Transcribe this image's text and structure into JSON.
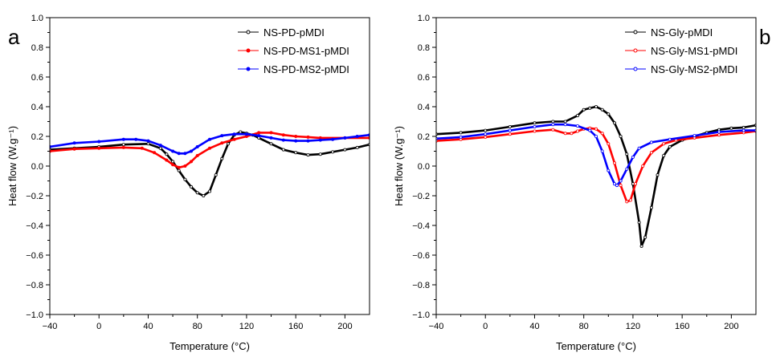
{
  "chart_data": [
    {
      "type": "line",
      "panel_label": "a",
      "title": "",
      "xlabel": "Temperature (°C)",
      "ylabel": "Heat flow (W.g⁻¹)",
      "xlim": [
        -40,
        220
      ],
      "ylim": [
        -1.0,
        1.0
      ],
      "xticks": [
        -40,
        0,
        40,
        80,
        120,
        160,
        200
      ],
      "yticks": [
        -1.0,
        -0.8,
        -0.6,
        -0.4,
        -0.2,
        0.0,
        0.2,
        0.4,
        0.6,
        0.8,
        1.0
      ],
      "ytick_labels": [
        "−1.0",
        "−0.8",
        "−0.6",
        "−0.4",
        "−0.2",
        "0.0",
        "0.2",
        "0.4",
        "0.6",
        "0.8",
        "1.0"
      ],
      "xtick_labels": [
        "−40",
        "0",
        "40",
        "80",
        "120",
        "160",
        "200"
      ],
      "grid": false,
      "legend_position": "top-right",
      "series": [
        {
          "name": "NS-PD-pMDI",
          "color": "#000000",
          "marker": "open-circle",
          "points": [
            [
              -40,
              0.11
            ],
            [
              -20,
              0.12
            ],
            [
              0,
              0.13
            ],
            [
              20,
              0.145
            ],
            [
              40,
              0.15
            ],
            [
              50,
              0.12
            ],
            [
              55,
              0.08
            ],
            [
              60,
              0.03
            ],
            [
              65,
              -0.03
            ],
            [
              70,
              -0.09
            ],
            [
              75,
              -0.14
            ],
            [
              80,
              -0.18
            ],
            [
              85,
              -0.2
            ],
            [
              90,
              -0.17
            ],
            [
              95,
              -0.06
            ],
            [
              100,
              0.05
            ],
            [
              105,
              0.15
            ],
            [
              110,
              0.21
            ],
            [
              115,
              0.23
            ],
            [
              120,
              0.22
            ],
            [
              125,
              0.21
            ],
            [
              130,
              0.19
            ],
            [
              140,
              0.15
            ],
            [
              150,
              0.11
            ],
            [
              160,
              0.09
            ],
            [
              170,
              0.075
            ],
            [
              180,
              0.08
            ],
            [
              190,
              0.095
            ],
            [
              200,
              0.11
            ],
            [
              210,
              0.125
            ],
            [
              220,
              0.145
            ]
          ]
        },
        {
          "name": "NS-PD-MS1-pMDI",
          "color": "#ff0000",
          "marker": "filled-circle",
          "points": [
            [
              -40,
              0.1
            ],
            [
              -20,
              0.115
            ],
            [
              0,
              0.12
            ],
            [
              20,
              0.125
            ],
            [
              35,
              0.12
            ],
            [
              45,
              0.09
            ],
            [
              55,
              0.04
            ],
            [
              60,
              0.01
            ],
            [
              65,
              -0.01
            ],
            [
              70,
              0.0
            ],
            [
              75,
              0.03
            ],
            [
              80,
              0.07
            ],
            [
              90,
              0.12
            ],
            [
              100,
              0.155
            ],
            [
              110,
              0.18
            ],
            [
              120,
              0.2
            ],
            [
              130,
              0.225
            ],
            [
              140,
              0.225
            ],
            [
              150,
              0.21
            ],
            [
              160,
              0.2
            ],
            [
              170,
              0.195
            ],
            [
              180,
              0.19
            ],
            [
              200,
              0.19
            ],
            [
              220,
              0.19
            ]
          ]
        },
        {
          "name": "NS-PD-MS2-pMDI",
          "color": "#0000ff",
          "marker": "filled-circle",
          "points": [
            [
              -40,
              0.13
            ],
            [
              -20,
              0.155
            ],
            [
              0,
              0.165
            ],
            [
              20,
              0.18
            ],
            [
              30,
              0.18
            ],
            [
              40,
              0.17
            ],
            [
              50,
              0.14
            ],
            [
              60,
              0.1
            ],
            [
              65,
              0.085
            ],
            [
              70,
              0.085
            ],
            [
              75,
              0.1
            ],
            [
              80,
              0.13
            ],
            [
              90,
              0.18
            ],
            [
              100,
              0.205
            ],
            [
              110,
              0.215
            ],
            [
              120,
              0.215
            ],
            [
              130,
              0.205
            ],
            [
              140,
              0.19
            ],
            [
              150,
              0.175
            ],
            [
              160,
              0.17
            ],
            [
              170,
              0.17
            ],
            [
              180,
              0.175
            ],
            [
              190,
              0.18
            ],
            [
              200,
              0.19
            ],
            [
              210,
              0.2
            ],
            [
              220,
              0.21
            ]
          ]
        }
      ]
    },
    {
      "type": "line",
      "panel_label": "b",
      "title": "",
      "xlabel": "Temperature (°C)",
      "ylabel": "Heat flow (W.g⁻¹)",
      "xlim": [
        -40,
        220
      ],
      "ylim": [
        -1.0,
        1.0
      ],
      "xticks": [
        -40,
        0,
        40,
        80,
        120,
        160,
        200
      ],
      "yticks": [
        -1.0,
        -0.8,
        -0.6,
        -0.4,
        -0.2,
        0.0,
        0.2,
        0.4,
        0.6,
        0.8,
        1.0
      ],
      "ytick_labels": [
        "−1.0",
        "−0.8",
        "−0.6",
        "−0.4",
        "−0.2",
        "0.0",
        "0.2",
        "0.4",
        "0.6",
        "0.8",
        "1.0"
      ],
      "xtick_labels": [
        "−40",
        "0",
        "40",
        "80",
        "120",
        "160",
        "200"
      ],
      "grid": false,
      "legend_position": "top-right",
      "series": [
        {
          "name": "NS-Gly-pMDI",
          "color": "#000000",
          "marker": "open-circle",
          "points": [
            [
              -40,
              0.215
            ],
            [
              -20,
              0.225
            ],
            [
              0,
              0.24
            ],
            [
              20,
              0.265
            ],
            [
              40,
              0.29
            ],
            [
              55,
              0.3
            ],
            [
              65,
              0.3
            ],
            [
              75,
              0.34
            ],
            [
              80,
              0.38
            ],
            [
              85,
              0.39
            ],
            [
              90,
              0.4
            ],
            [
              95,
              0.38
            ],
            [
              100,
              0.35
            ],
            [
              105,
              0.29
            ],
            [
              110,
              0.2
            ],
            [
              115,
              0.08
            ],
            [
              120,
              -0.12
            ],
            [
              125,
              -0.38
            ],
            [
              127,
              -0.54
            ],
            [
              130,
              -0.48
            ],
            [
              135,
              -0.28
            ],
            [
              140,
              -0.06
            ],
            [
              145,
              0.07
            ],
            [
              150,
              0.13
            ],
            [
              160,
              0.175
            ],
            [
              170,
              0.2
            ],
            [
              180,
              0.225
            ],
            [
              190,
              0.245
            ],
            [
              200,
              0.255
            ],
            [
              210,
              0.26
            ],
            [
              220,
              0.275
            ]
          ]
        },
        {
          "name": "NS-Gly-MS1-pMDI",
          "color": "#ff0000",
          "marker": "open-circle",
          "points": [
            [
              -40,
              0.17
            ],
            [
              -20,
              0.18
            ],
            [
              0,
              0.195
            ],
            [
              20,
              0.215
            ],
            [
              40,
              0.235
            ],
            [
              55,
              0.245
            ],
            [
              65,
              0.22
            ],
            [
              70,
              0.22
            ],
            [
              75,
              0.235
            ],
            [
              80,
              0.25
            ],
            [
              85,
              0.255
            ],
            [
              90,
              0.25
            ],
            [
              95,
              0.22
            ],
            [
              100,
              0.15
            ],
            [
              105,
              0.02
            ],
            [
              110,
              -0.13
            ],
            [
              115,
              -0.24
            ],
            [
              118,
              -0.23
            ],
            [
              122,
              -0.12
            ],
            [
              128,
              0.0
            ],
            [
              135,
              0.09
            ],
            [
              145,
              0.15
            ],
            [
              155,
              0.175
            ],
            [
              170,
              0.19
            ],
            [
              190,
              0.21
            ],
            [
              210,
              0.225
            ],
            [
              220,
              0.235
            ]
          ]
        },
        {
          "name": "NS-Gly-MS2-pMDI",
          "color": "#0000ff",
          "marker": "open-circle",
          "points": [
            [
              -40,
              0.185
            ],
            [
              -20,
              0.195
            ],
            [
              0,
              0.215
            ],
            [
              20,
              0.24
            ],
            [
              40,
              0.265
            ],
            [
              55,
              0.28
            ],
            [
              65,
              0.28
            ],
            [
              75,
              0.27
            ],
            [
              85,
              0.24
            ],
            [
              90,
              0.2
            ],
            [
              95,
              0.1
            ],
            [
              100,
              -0.03
            ],
            [
              105,
              -0.12
            ],
            [
              107,
              -0.13
            ],
            [
              110,
              -0.1
            ],
            [
              115,
              -0.02
            ],
            [
              120,
              0.06
            ],
            [
              125,
              0.12
            ],
            [
              135,
              0.16
            ],
            [
              150,
              0.18
            ],
            [
              170,
              0.205
            ],
            [
              190,
              0.23
            ],
            [
              210,
              0.24
            ],
            [
              220,
              0.24
            ]
          ]
        }
      ]
    }
  ]
}
